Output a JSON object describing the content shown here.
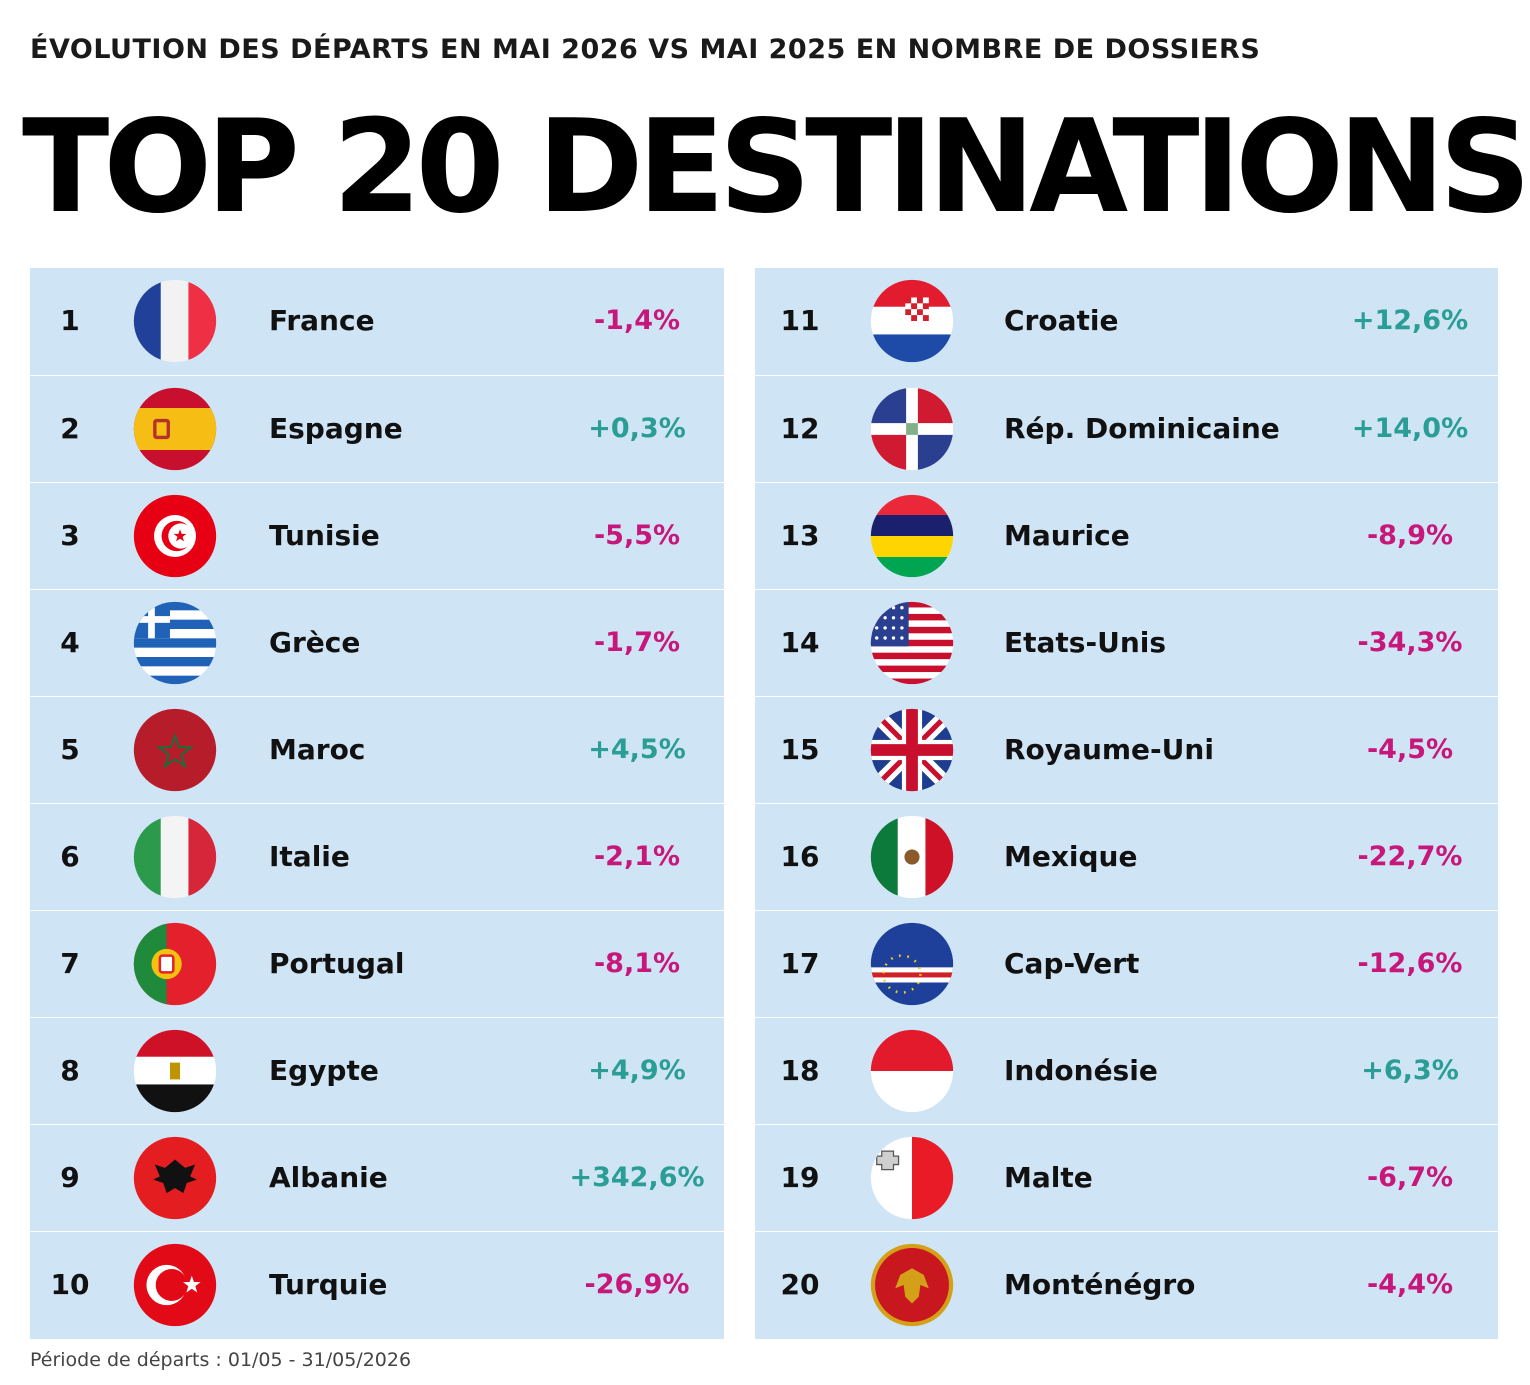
{
  "header": {
    "subtitle": "ÉVOLUTION DES DÉPARTS EN MAI 2026 VS MAI 2025 EN NOMBRE DE DOSSIERS",
    "title": "TOP 20 DESTINATIONS"
  },
  "footer": {
    "period": "Période de départs : 01/05 - 31/05/2026"
  },
  "colors": {
    "positive": "#2a9d95",
    "negative": "#c8177a",
    "panel_bg": "#cfe4f5",
    "text": "#111111"
  },
  "chart_data": {
    "type": "table",
    "title": "TOP 20 DESTINATIONS",
    "subtitle": "ÉVOLUTION DES DÉPARTS EN MAI 2026 VS MAI 2025 EN NOMBRE DE DOSSIERS",
    "columns": [
      "rank",
      "flag",
      "country",
      "change"
    ],
    "rows": [
      {
        "rank": "1",
        "country": "France",
        "change_label": "-1,4%",
        "change": -1.4,
        "flag_icon": "flag-france-icon"
      },
      {
        "rank": "2",
        "country": "Espagne",
        "change_label": "+0,3%",
        "change": 0.3,
        "flag_icon": "flag-spain-icon"
      },
      {
        "rank": "3",
        "country": "Tunisie",
        "change_label": "-5,5%",
        "change": -5.5,
        "flag_icon": "flag-tunisia-icon"
      },
      {
        "rank": "4",
        "country": "Grèce",
        "change_label": "-1,7%",
        "change": -1.7,
        "flag_icon": "flag-greece-icon"
      },
      {
        "rank": "5",
        "country": "Maroc",
        "change_label": "+4,5%",
        "change": 4.5,
        "flag_icon": "flag-morocco-icon"
      },
      {
        "rank": "6",
        "country": "Italie",
        "change_label": "-2,1%",
        "change": -2.1,
        "flag_icon": "flag-italy-icon"
      },
      {
        "rank": "7",
        "country": "Portugal",
        "change_label": "-8,1%",
        "change": -8.1,
        "flag_icon": "flag-portugal-icon"
      },
      {
        "rank": "8",
        "country": "Egypte",
        "change_label": "+4,9%",
        "change": 4.9,
        "flag_icon": "flag-egypt-icon"
      },
      {
        "rank": "9",
        "country": "Albanie",
        "change_label": "+342,6%",
        "change": 342.6,
        "flag_icon": "flag-albania-icon"
      },
      {
        "rank": "10",
        "country": "Turquie",
        "change_label": "-26,9%",
        "change": -26.9,
        "flag_icon": "flag-turkey-icon"
      },
      {
        "rank": "11",
        "country": "Croatie",
        "change_label": "+12,6%",
        "change": 12.6,
        "flag_icon": "flag-croatia-icon"
      },
      {
        "rank": "12",
        "country": "Rép. Dominicaine",
        "change_label": "+14,0%",
        "change": 14.0,
        "flag_icon": "flag-dominican-republic-icon"
      },
      {
        "rank": "13",
        "country": "Maurice",
        "change_label": "-8,9%",
        "change": -8.9,
        "flag_icon": "flag-mauritius-icon"
      },
      {
        "rank": "14",
        "country": "Etats-Unis",
        "change_label": "-34,3%",
        "change": -34.3,
        "flag_icon": "flag-usa-icon"
      },
      {
        "rank": "15",
        "country": "Royaume-Uni",
        "change_label": "-4,5%",
        "change": -4.5,
        "flag_icon": "flag-uk-icon"
      },
      {
        "rank": "16",
        "country": "Mexique",
        "change_label": "-22,7%",
        "change": -22.7,
        "flag_icon": "flag-mexico-icon"
      },
      {
        "rank": "17",
        "country": "Cap-Vert",
        "change_label": "-12,6%",
        "change": -12.6,
        "flag_icon": "flag-cape-verde-icon"
      },
      {
        "rank": "18",
        "country": "Indonésie",
        "change_label": "+6,3%",
        "change": 6.3,
        "flag_icon": "flag-indonesia-icon"
      },
      {
        "rank": "19",
        "country": "Malte",
        "change_label": "-6,7%",
        "change": -6.7,
        "flag_icon": "flag-malta-icon"
      },
      {
        "rank": "20",
        "country": "Monténégro",
        "change_label": "-4,4%",
        "change": -4.4,
        "flag_icon": "flag-montenegro-icon"
      }
    ]
  }
}
